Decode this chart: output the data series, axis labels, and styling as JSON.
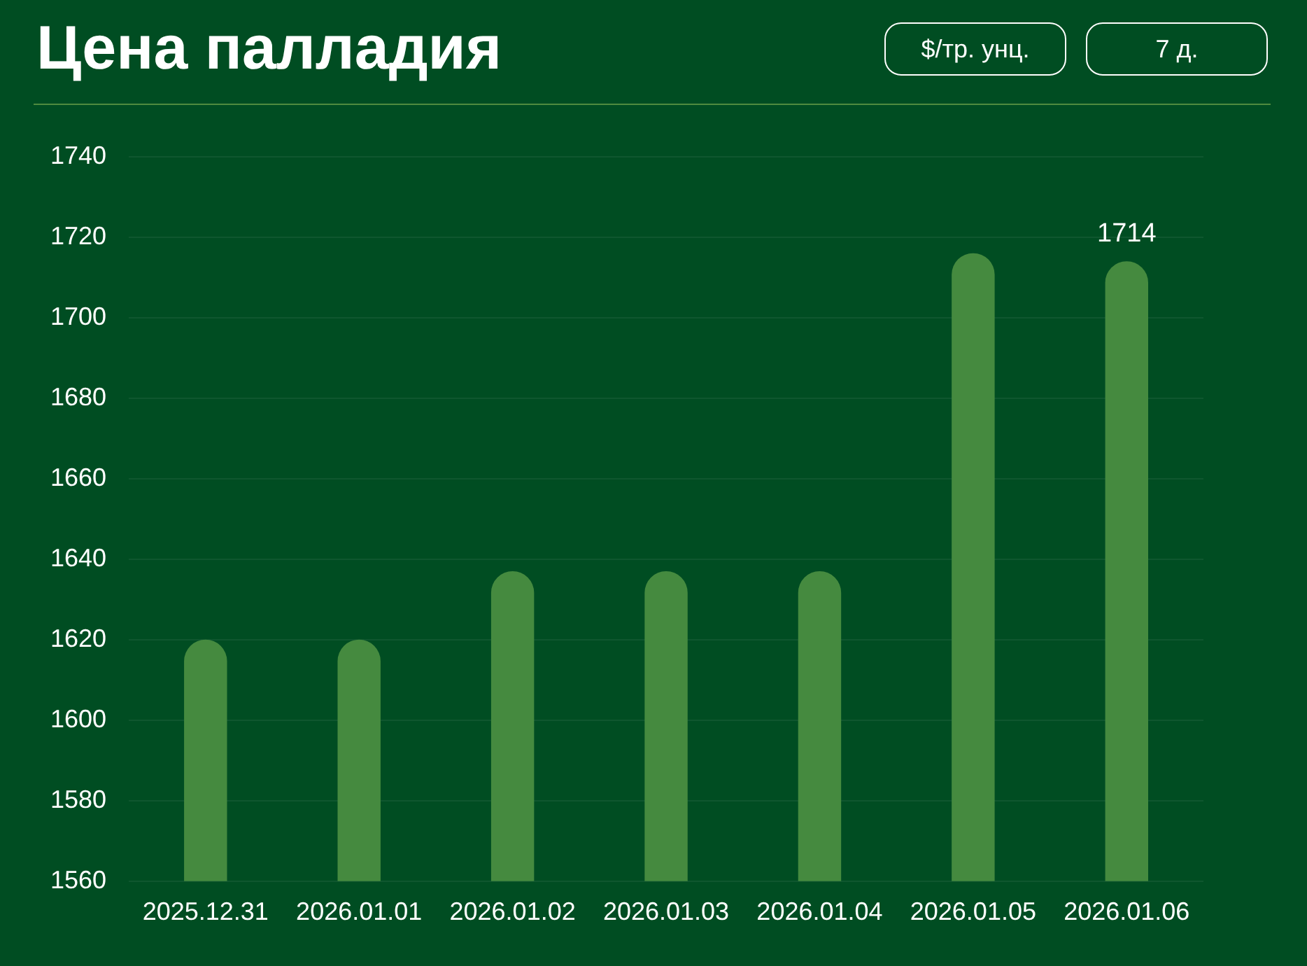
{
  "chart_data": {
    "type": "bar",
    "title": "Цена палладия",
    "annotations": [
      "$/тр. унц.",
      "7 д."
    ],
    "categories": [
      "2025.12.31",
      "2026.01.01",
      "2026.01.02",
      "2026.01.03",
      "2026.01.04",
      "2026.01.05",
      "2026.01.06"
    ],
    "values": [
      1620,
      1620,
      1637,
      1637,
      1637,
      1716,
      1714
    ],
    "value_labels": [
      null,
      null,
      null,
      null,
      null,
      null,
      "1714"
    ],
    "color": "#458a3f",
    "ylim": [
      1560,
      1740
    ],
    "yticks": [
      1560,
      1580,
      1600,
      1620,
      1640,
      1660,
      1680,
      1700,
      1720,
      1740
    ],
    "grid": "y",
    "legend": false
  }
}
